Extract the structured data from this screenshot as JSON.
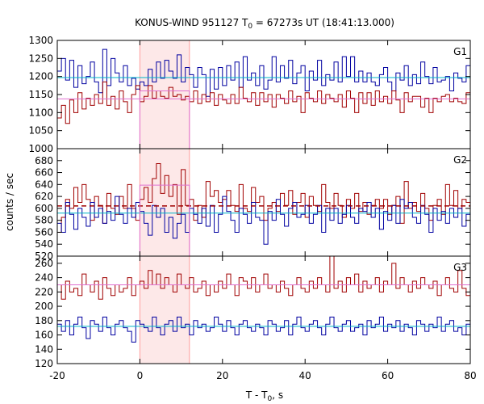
{
  "chart_data": {
    "type": "line",
    "title_main": "KONUS-WIND 951127 T",
    "title_sub": "0",
    "title_rest": " = 67273s UT (18:41:13.000)",
    "xlabel_main": "T - T",
    "xlabel_sub": "0",
    "xlabel_rest": ", s",
    "ylabel": "counts / sec",
    "xlim": [
      -20,
      80
    ],
    "xticks": [
      "-20",
      "0",
      "20",
      "40",
      "60",
      "80"
    ],
    "highlight_interval": [
      0,
      12
    ],
    "colors": {
      "red": "#a00000",
      "blue": "#0000a0",
      "cyan": "#00b4c8",
      "pink": "#e070d0",
      "band": "#fde8e8",
      "band_edge": "#ff9c9c"
    },
    "panels": [
      {
        "label": "G1",
        "ylim": [
          1000,
          1300
        ],
        "yticks": [
          "1000",
          "1050",
          "1100",
          "1150",
          "1200",
          "1250",
          "1300"
        ],
        "series": [
          {
            "color": "blue",
            "x_start": -20,
            "bin": 1,
            "values": [
              1215,
              1250,
              1190,
              1245,
              1170,
              1230,
              1180,
              1200,
              1240,
              1185,
              1155,
              1275,
              1175,
              1250,
              1210,
              1185,
              1230,
              1175,
              1195,
              1165,
              1185,
              1175,
              1220,
              1185,
              1240,
              1195,
              1245,
              1215,
              1195,
              1260,
              1185,
              1225,
              1205,
              1170,
              1225,
              1205,
              1145,
              1220,
              1165,
              1225,
              1175,
              1230,
              1190,
              1240,
              1170,
              1255,
              1190,
              1210,
              1175,
              1230,
              1165,
              1190,
              1255,
              1185,
              1230,
              1195,
              1245,
              1180,
              1210,
              1230,
              1160,
              1215,
              1190,
              1245,
              1175,
              1205,
              1190,
              1240,
              1185,
              1255,
              1200,
              1255,
              1185,
              1215,
              1185,
              1210,
              1185,
              1175,
              1205,
              1225,
              1185,
              1160,
              1210,
              1190,
              1230,
              1175,
              1205,
              1180,
              1240,
              1200,
              1180,
              1225,
              1185,
              1190,
              1200,
              1160,
              1210,
              1195,
              1185,
              1230
            ]
          },
          {
            "color": "red",
            "x_start": -20,
            "bin": 1,
            "values": [
              1085,
              1120,
              1070,
              1135,
              1100,
              1155,
              1110,
              1140,
              1120,
              1150,
              1125,
              1185,
              1120,
              1145,
              1110,
              1160,
              1130,
              1100,
              1150,
              1175,
              1130,
              1145,
              1175,
              1140,
              1160,
              1145,
              1140,
              1170,
              1145,
              1150,
              1135,
              1145,
              1130,
              1160,
              1125,
              1150,
              1130,
              1155,
              1120,
              1150,
              1135,
              1125,
              1150,
              1125,
              1170,
              1140,
              1130,
              1155,
              1120,
              1155,
              1130,
              1150,
              1115,
              1150,
              1140,
              1125,
              1160,
              1130,
              1145,
              1100,
              1155,
              1140,
              1130,
              1160,
              1125,
              1150,
              1140,
              1130,
              1150,
              1115,
              1160,
              1140,
              1100,
              1155,
              1125,
              1155,
              1120,
              1160,
              1130,
              1145,
              1125,
              1160,
              1135,
              1100,
              1155,
              1130,
              1145,
              1145,
              1115,
              1140,
              1100,
              1140,
              1130,
              1145,
              1150,
              1130,
              1140,
              1130,
              1125,
              1155
            ]
          }
        ],
        "levels": [
          {
            "color": "cyan",
            "value": 1197
          },
          {
            "color": "pink",
            "value": 1138
          }
        ],
        "box": {
          "color": "pink",
          "x": [
            0,
            12
          ],
          "value": 1160
        }
      },
      {
        "label": "G2",
        "ylim": [
          520,
          700
        ],
        "yticks": [
          "520",
          "540",
          "560",
          "580",
          "600",
          "620",
          "640",
          "660",
          "680"
        ],
        "series": [
          {
            "color": "red",
            "x_start": -20,
            "bin": 1,
            "values": [
              560,
              585,
              615,
              600,
              635,
              610,
              640,
              615,
              580,
              620,
              605,
              575,
              625,
              600,
              590,
              620,
              600,
              640,
              600,
              580,
              615,
              635,
              610,
              650,
              675,
              625,
              655,
              620,
              640,
              590,
              665,
              605,
              615,
              580,
              605,
              585,
              645,
              620,
              630,
              610,
              615,
              630,
              605,
              595,
              640,
              600,
              595,
              635,
              610,
              620,
              580,
              600,
              610,
              595,
              625,
              605,
              630,
              590,
              610,
              625,
              585,
              620,
              605,
              595,
              640,
              610,
              600,
              625,
              605,
              585,
              615,
              600,
              625,
              595,
              610,
              590,
              605,
              615,
              600,
              615,
              590,
              605,
              620,
              575,
              645,
              600,
              610,
              595,
              625,
              600,
              580,
              605,
              615,
              590,
              640,
              605,
              630,
              600,
              615,
              610
            ]
          },
          {
            "color": "blue",
            "x_start": -20,
            "bin": 1,
            "values": [
              575,
              560,
              610,
              590,
              565,
              600,
              585,
              570,
              610,
              585,
              600,
              575,
              595,
              580,
              620,
              590,
              575,
              600,
              585,
              610,
              595,
              575,
              555,
              605,
              585,
              600,
              560,
              585,
              550,
              575,
              590,
              560,
              600,
              590,
              575,
              600,
              570,
              605,
              560,
              590,
              620,
              595,
              580,
              560,
              600,
              590,
              575,
              610,
              585,
              580,
              540,
              595,
              580,
              615,
              590,
              570,
              600,
              610,
              585,
              590,
              605,
              575,
              590,
              605,
              560,
              600,
              580,
              600,
              575,
              590,
              605,
              585,
              575,
              600,
              595,
              610,
              585,
              600,
              565,
              595,
              580,
              605,
              575,
              615,
              600,
              610,
              585,
              575,
              605,
              590,
              560,
              600,
              580,
              595,
              575,
              600,
              585,
              600,
              570,
              590
            ]
          }
        ],
        "levels": [
          {
            "color": "cyan",
            "value": 592
          },
          {
            "color": "red",
            "value": 604,
            "dashed": true
          }
        ],
        "box": {
          "color": "pink",
          "x": [
            0,
            12
          ],
          "value": 639
        }
      },
      {
        "label": "G3",
        "ylim": [
          120,
          270
        ],
        "yticks": [
          "120",
          "140",
          "160",
          "180",
          "200",
          "220",
          "240",
          "260"
        ],
        "series": [
          {
            "color": "red",
            "x_start": -20,
            "bin": 1,
            "values": [
              230,
              210,
              235,
              220,
              225,
              215,
              245,
              230,
              220,
              235,
              210,
              240,
              225,
              215,
              230,
              220,
              225,
              240,
              215,
              230,
              235,
              225,
              250,
              230,
              245,
              225,
              240,
              230,
              220,
              245,
              230,
              225,
              240,
              220,
              225,
              235,
              215,
              230,
              220,
              235,
              225,
              245,
              230,
              215,
              240,
              235,
              225,
              240,
              220,
              230,
              245,
              225,
              230,
              220,
              235,
              225,
              215,
              230,
              240,
              225,
              220,
              235,
              225,
              240,
              230,
              220,
              270,
              225,
              235,
              220,
              240,
              230,
              245,
              220,
              235,
              225,
              230,
              240,
              220,
              235,
              230,
              260,
              225,
              240,
              230,
              220,
              235,
              225,
              240,
              230,
              225,
              235,
              215,
              230,
              240,
              225,
              220,
              250,
              225,
              215
            ]
          },
          {
            "color": "blue",
            "x_start": -20,
            "bin": 1,
            "values": [
              175,
              165,
              180,
              160,
              175,
              185,
              170,
              155,
              180,
              175,
              165,
              185,
              170,
              160,
              175,
              180,
              170,
              165,
              150,
              180,
              175,
              170,
              165,
              185,
              170,
              160,
              175,
              180,
              165,
              185,
              170,
              175,
              160,
              180,
              170,
              175,
              165,
              170,
              185,
              175,
              165,
              180,
              170,
              160,
              175,
              180,
              170,
              165,
              175,
              170,
              160,
              180,
              175,
              165,
              170,
              180,
              160,
              175,
              185,
              170,
              165,
              175,
              180,
              170,
              160,
              175,
              185,
              170,
              165,
              175,
              180,
              165,
              170,
              175,
              160,
              180,
              170,
              175,
              185,
              165,
              175,
              170,
              180,
              165,
              175,
              170,
              160,
              180,
              175,
              165,
              175,
              170,
              185,
              165,
              175,
              180,
              165,
              170,
              160,
              175
            ]
          }
        ],
        "levels": [
          {
            "color": "pink",
            "value": 230
          },
          {
            "color": "cyan",
            "value": 172
          }
        ],
        "box": null
      }
    ]
  }
}
